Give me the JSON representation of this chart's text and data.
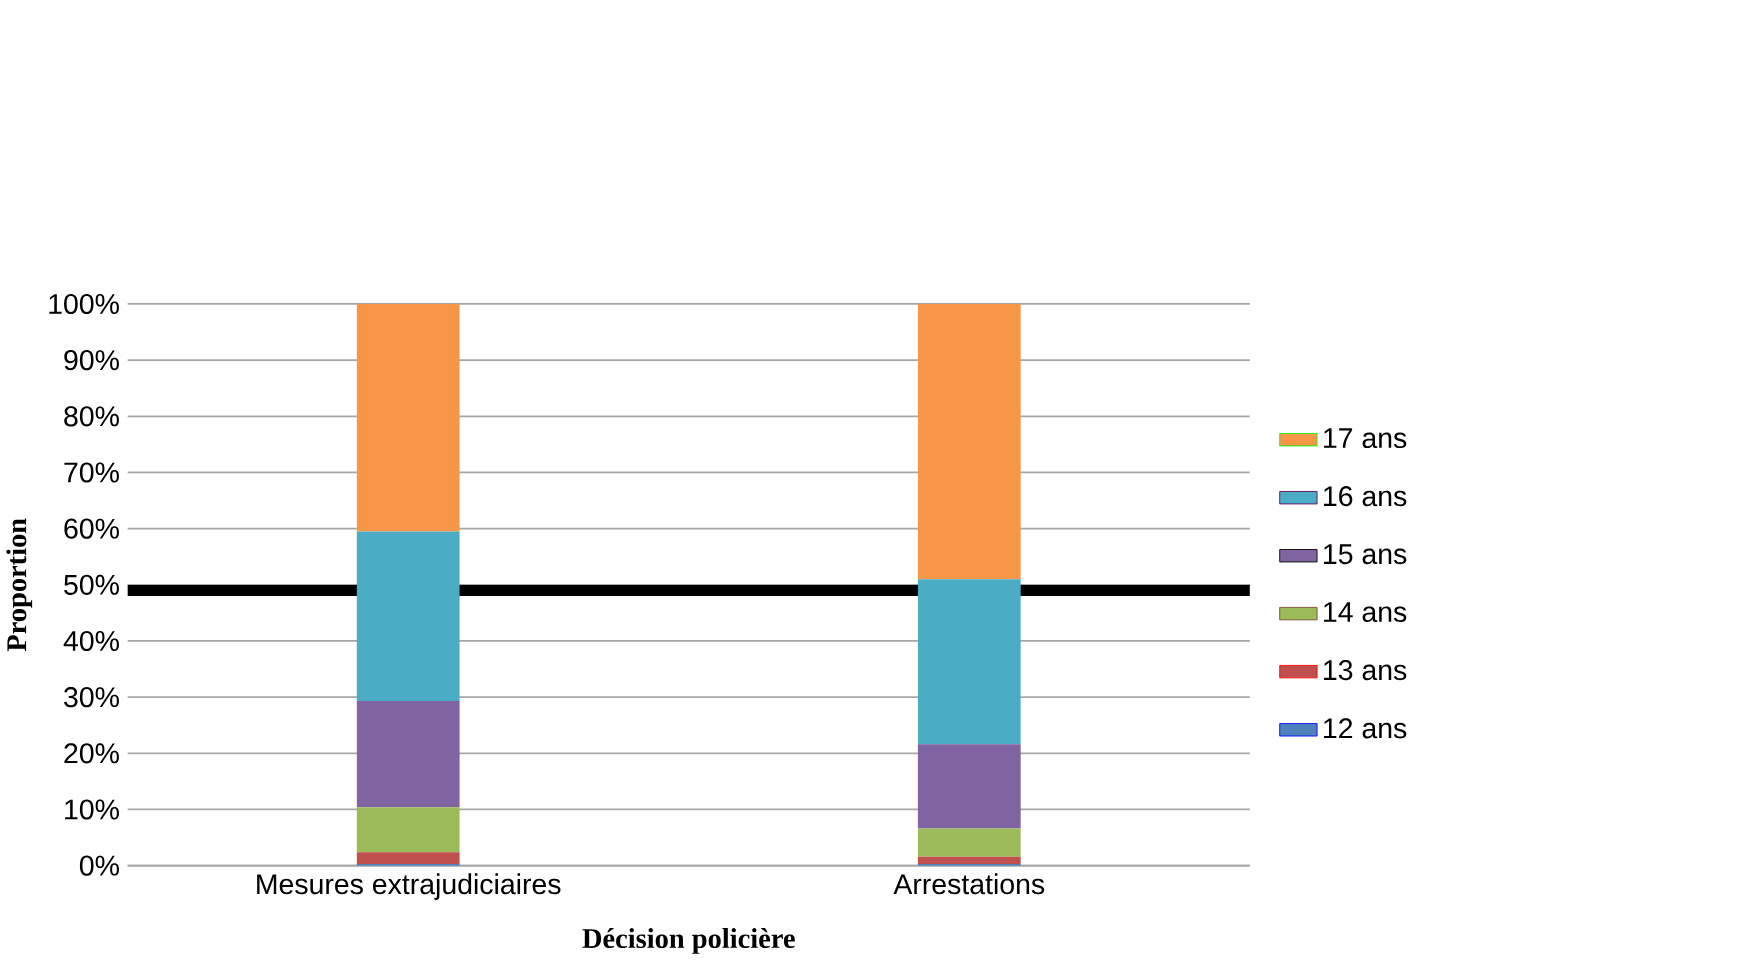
{
  "chart_data": {
    "type": "bar",
    "stacked": true,
    "xlabel": "Décision policière",
    "ylabel": "Proportion",
    "categories": [
      "Mesures extrajudiciaires",
      "Arrestations"
    ],
    "series": [
      {
        "name": "12 ans",
        "color": "#4f81bd",
        "values": [
          0.3,
          0.3
        ]
      },
      {
        "name": "13 ans",
        "color": "#c0504d",
        "values": [
          2.1,
          1.3
        ]
      },
      {
        "name": "14 ans",
        "color": "#9bbb59",
        "values": [
          8.0,
          5.0
        ]
      },
      {
        "name": "15 ans",
        "color": "#8064a2",
        "values": [
          18.9,
          15.0
        ]
      },
      {
        "name": "16 ans",
        "color": "#4bacc6",
        "values": [
          30.2,
          29.4
        ]
      },
      {
        "name": "17 ans",
        "color": "#f79646",
        "values": [
          40.5,
          49.0
        ]
      }
    ],
    "ylim": [
      0,
      100
    ],
    "yticks": [
      {
        "value": 0,
        "label": "0%"
      },
      {
        "value": 10,
        "label": "10%"
      },
      {
        "value": 20,
        "label": "20%"
      },
      {
        "value": 30,
        "label": "30%"
      },
      {
        "value": 40,
        "label": "40%"
      },
      {
        "value": 50,
        "label": "50%"
      },
      {
        "value": 60,
        "label": "60%"
      },
      {
        "value": 70,
        "label": "70%"
      },
      {
        "value": 80,
        "label": "80%"
      },
      {
        "value": 90,
        "label": "90%"
      },
      {
        "value": 100,
        "label": "100%"
      }
    ],
    "ref_lines": [
      {
        "axis": "y",
        "value": 49,
        "color": "#000000",
        "line_style": "solid"
      }
    ],
    "grid": "y",
    "legend": "right"
  }
}
